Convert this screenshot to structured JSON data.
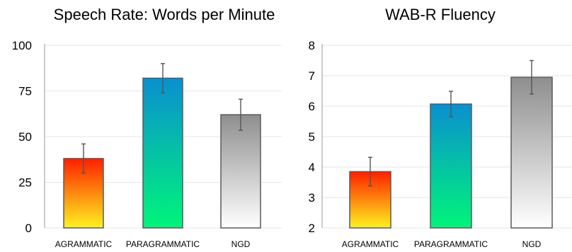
{
  "chart_data": [
    {
      "type": "bar",
      "title": "Speech Rate: Words per Minute",
      "categories": [
        "AGRAMMATIC",
        "PARAGRAMMATIC",
        "NGD"
      ],
      "values": [
        38,
        82,
        62
      ],
      "error": [
        8,
        8,
        8.5
      ],
      "ylim": [
        0,
        100
      ],
      "yticks": [
        "0",
        "25",
        "50",
        "75",
        "100"
      ],
      "grid": true,
      "xlabel": "",
      "ylabel": ""
    },
    {
      "type": "bar",
      "title": "WAB-R Fluency",
      "categories": [
        "AGRAMMATIC",
        "PARAGRAMMATIC",
        "NGD"
      ],
      "values": [
        3.85,
        6.07,
        6.95
      ],
      "error": [
        0.47,
        0.42,
        0.55
      ],
      "ylim": [
        2,
        8
      ],
      "yticks": [
        "2",
        "3",
        "4",
        "5",
        "6",
        "7",
        "8"
      ],
      "grid": true,
      "xlabel": "",
      "ylabel": ""
    }
  ],
  "colors": {
    "agrammatic": [
      "#fff21f",
      "#ff1f00"
    ],
    "paragrammatic": [
      "#00f57a",
      "#0a8fd0"
    ],
    "ngd": [
      "#ffffff",
      "#8e8e8e"
    ],
    "grid": "#e6e6e6",
    "axis": "#9a9a9a"
  }
}
